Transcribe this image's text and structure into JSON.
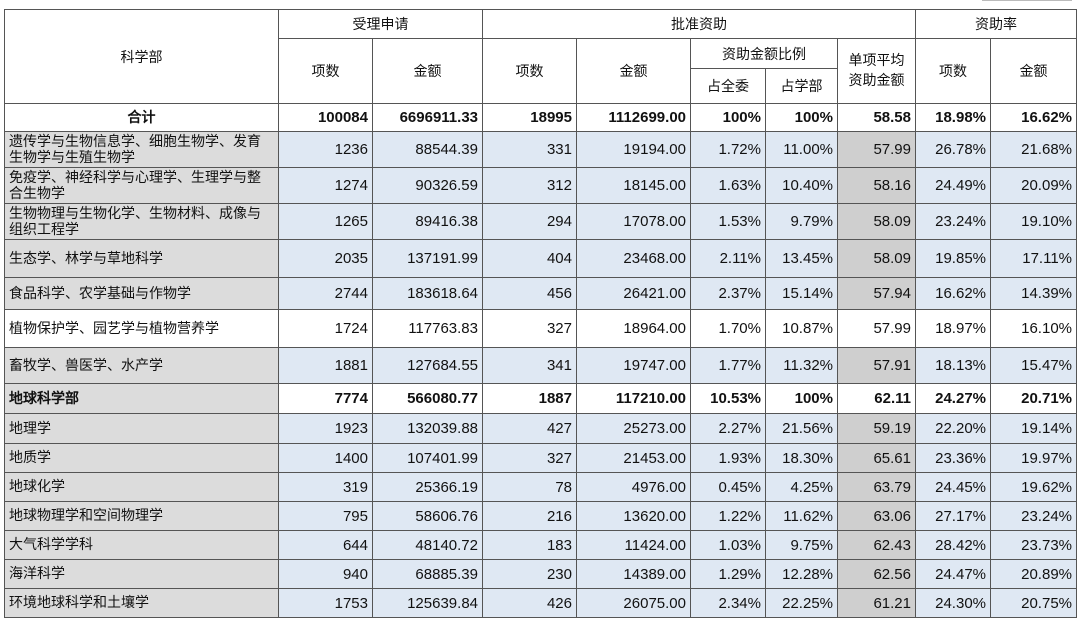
{
  "header": {
    "dept": "科学部",
    "accepted": "受理申请",
    "approved": "批准资助",
    "rate": "资助率",
    "items": "项数",
    "amount": "金额",
    "ratio": "资助金额比例",
    "share_all": "占全委",
    "share_dept": "占学部",
    "avg": "单项平均资助金额"
  },
  "rows": [
    {
      "kind": "total",
      "name": "合计",
      "acc_items": "100084",
      "acc_amount": "6696911.33",
      "app_items": "18995",
      "app_amount": "1112699.00",
      "share_all": "100%",
      "share_dept": "100%",
      "avg": "58.58",
      "rate_items": "18.98%",
      "rate_amount": "16.62%"
    },
    {
      "kind": "shaded",
      "name": "遗传学与生物信息学、细胞生物学、发育生物学与生殖生物学",
      "acc_items": "1236",
      "acc_amount": "88544.39",
      "app_items": "331",
      "app_amount": "19194.00",
      "share_all": "1.72%",
      "share_dept": "11.00%",
      "avg": "57.99",
      "rate_items": "26.78%",
      "rate_amount": "21.68%"
    },
    {
      "kind": "shaded",
      "name": "免疫学、神经科学与心理学、生理学与整合生物学",
      "acc_items": "1274",
      "acc_amount": "90326.59",
      "app_items": "312",
      "app_amount": "18145.00",
      "share_all": "1.63%",
      "share_dept": "10.40%",
      "avg": "58.16",
      "rate_items": "24.49%",
      "rate_amount": "20.09%"
    },
    {
      "kind": "shaded",
      "name": "生物物理与生物化学、生物材料、成像与组织工程学",
      "acc_items": "1265",
      "acc_amount": "89416.38",
      "app_items": "294",
      "app_amount": "17078.00",
      "share_all": "1.53%",
      "share_dept": "9.79%",
      "avg": "58.09",
      "rate_items": "23.24%",
      "rate_amount": "19.10%"
    },
    {
      "kind": "shaded",
      "name": "生态学、林学与草地科学",
      "acc_items": "2035",
      "acc_amount": "137191.99",
      "app_items": "404",
      "app_amount": "23468.00",
      "share_all": "2.11%",
      "share_dept": "13.45%",
      "avg": "58.09",
      "rate_items": "19.85%",
      "rate_amount": "17.11%"
    },
    {
      "kind": "shaded",
      "name": "食品科学、农学基础与作物学",
      "acc_items": "2744",
      "acc_amount": "183618.64",
      "app_items": "456",
      "app_amount": "26421.00",
      "share_all": "2.37%",
      "share_dept": "15.14%",
      "avg": "57.94",
      "rate_items": "16.62%",
      "rate_amount": "14.39%"
    },
    {
      "kind": "plain",
      "name": "植物保护学、园艺学与植物营养学",
      "acc_items": "1724",
      "acc_amount": "117763.83",
      "app_items": "327",
      "app_amount": "18964.00",
      "share_all": "1.70%",
      "share_dept": "10.87%",
      "avg": "57.99",
      "rate_items": "18.97%",
      "rate_amount": "16.10%"
    },
    {
      "kind": "shaded",
      "name": "畜牧学、兽医学、水产学",
      "acc_items": "1881",
      "acc_amount": "127684.55",
      "app_items": "341",
      "app_amount": "19747.00",
      "share_all": "1.77%",
      "share_dept": "11.32%",
      "avg": "57.91",
      "rate_items": "18.13%",
      "rate_amount": "15.47%"
    },
    {
      "kind": "dept",
      "name": "地球科学部",
      "acc_items": "7774",
      "acc_amount": "566080.77",
      "app_items": "1887",
      "app_amount": "117210.00",
      "share_all": "10.53%",
      "share_dept": "100%",
      "avg": "62.11",
      "rate_items": "24.27%",
      "rate_amount": "20.71%"
    },
    {
      "kind": "shaded",
      "name": "地理学",
      "acc_items": "1923",
      "acc_amount": "132039.88",
      "app_items": "427",
      "app_amount": "25273.00",
      "share_all": "2.27%",
      "share_dept": "21.56%",
      "avg": "59.19",
      "rate_items": "22.20%",
      "rate_amount": "19.14%"
    },
    {
      "kind": "shaded",
      "name": "地质学",
      "acc_items": "1400",
      "acc_amount": "107401.99",
      "app_items": "327",
      "app_amount": "21453.00",
      "share_all": "1.93%",
      "share_dept": "18.30%",
      "avg": "65.61",
      "rate_items": "23.36%",
      "rate_amount": "19.97%"
    },
    {
      "kind": "shaded",
      "name": "地球化学",
      "acc_items": "319",
      "acc_amount": "25366.19",
      "app_items": "78",
      "app_amount": "4976.00",
      "share_all": "0.45%",
      "share_dept": "4.25%",
      "avg": "63.79",
      "rate_items": "24.45%",
      "rate_amount": "19.62%"
    },
    {
      "kind": "shaded",
      "name": "地球物理学和空间物理学",
      "acc_items": "795",
      "acc_amount": "58606.76",
      "app_items": "216",
      "app_amount": "13620.00",
      "share_all": "1.22%",
      "share_dept": "11.62%",
      "avg": "63.06",
      "rate_items": "27.17%",
      "rate_amount": "23.24%"
    },
    {
      "kind": "shaded",
      "name": "大气科学学科",
      "acc_items": "644",
      "acc_amount": "48140.72",
      "app_items": "183",
      "app_amount": "11424.00",
      "share_all": "1.03%",
      "share_dept": "9.75%",
      "avg": "62.43",
      "rate_items": "28.42%",
      "rate_amount": "23.73%"
    },
    {
      "kind": "shaded",
      "name": "海洋科学",
      "acc_items": "940",
      "acc_amount": "68885.39",
      "app_items": "230",
      "app_amount": "14389.00",
      "share_all": "1.29%",
      "share_dept": "12.28%",
      "avg": "62.56",
      "rate_items": "24.47%",
      "rate_amount": "20.89%"
    },
    {
      "kind": "shaded",
      "name": "环境地球科学和土壤学",
      "acc_items": "1753",
      "acc_amount": "125639.84",
      "app_items": "426",
      "app_amount": "26075.00",
      "share_all": "2.34%",
      "share_dept": "22.25%",
      "avg": "61.21",
      "rate_items": "24.30%",
      "rate_amount": "20.75%"
    }
  ]
}
